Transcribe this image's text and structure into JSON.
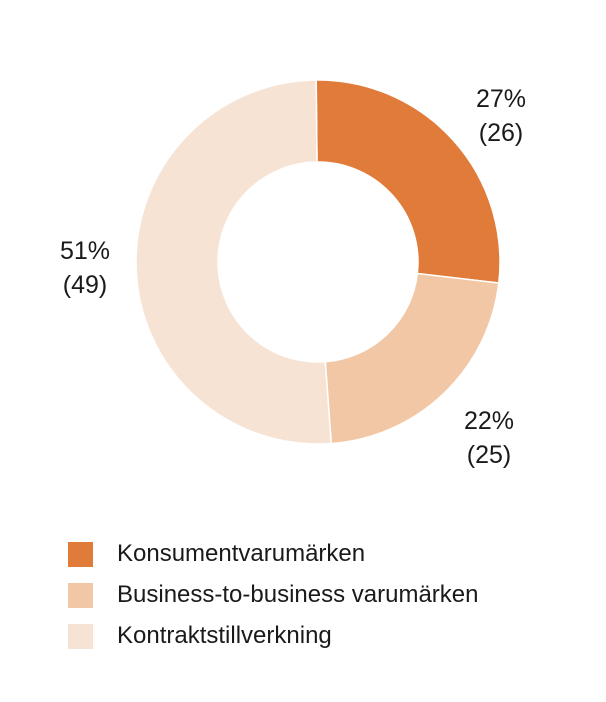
{
  "chart_data": {
    "type": "pie",
    "variant": "donut",
    "title": "",
    "series": [
      {
        "categories": [
          "Konsumentvarumärken",
          "Business-to-business varumärken",
          "Kontraktstillverkning"
        ],
        "values": [
          27,
          22,
          51
        ],
        "previous_values": [
          26,
          25,
          49
        ],
        "colors": [
          "#e07b39",
          "#f2c7a5",
          "#f6e3d4"
        ]
      }
    ],
    "slice_labels": [
      {
        "percent": "27%",
        "previous": "(26)"
      },
      {
        "percent": "22%",
        "previous": "(25)"
      },
      {
        "percent": "51%",
        "previous": "(49)"
      }
    ],
    "legend": {
      "position": "bottom-left",
      "items": [
        {
          "label": "Konsumentvarumärken",
          "color": "#e07b39"
        },
        {
          "label": "Business-to-business varumärken",
          "color": "#f2c7a5"
        },
        {
          "label": "Kontraktstillverkning",
          "color": "#f6e3d4"
        }
      ]
    }
  }
}
